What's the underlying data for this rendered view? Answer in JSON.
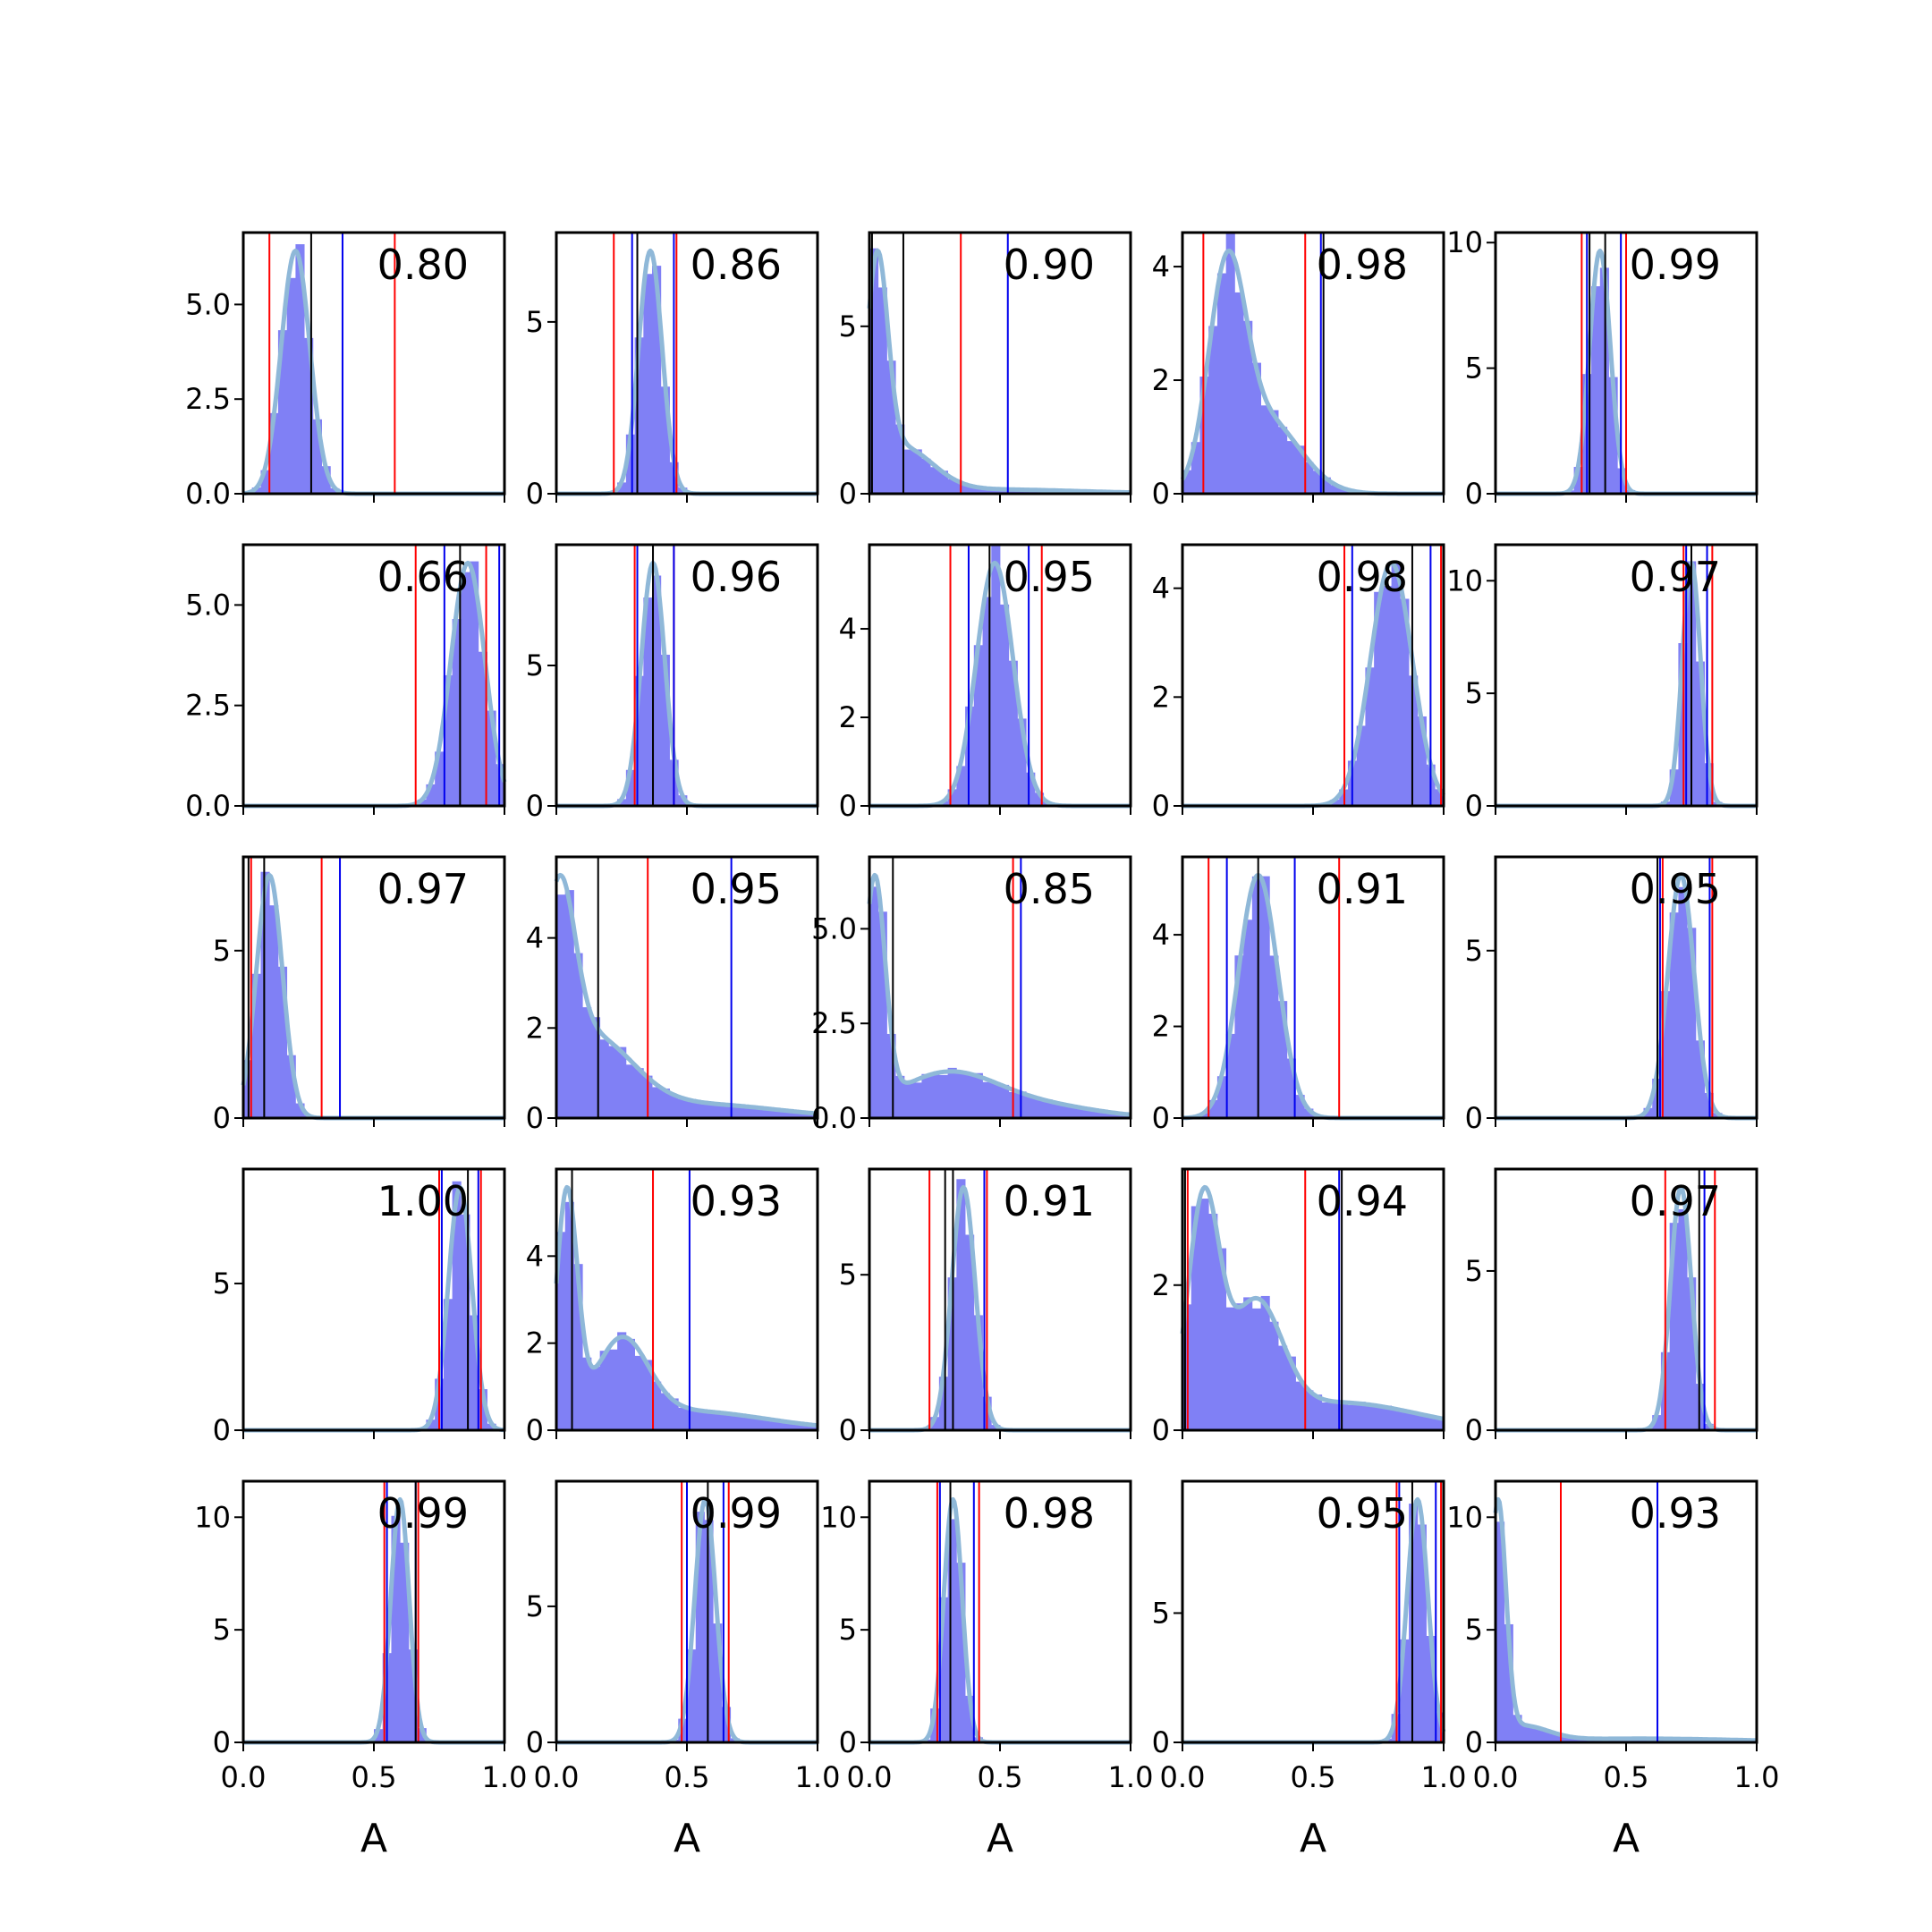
{
  "chart_data": {
    "type": "histogram-grid",
    "rows": 5,
    "cols": 5,
    "xlabel": "A",
    "xlim": [
      0.0,
      1.0
    ],
    "xticks": [
      "0.0",
      "0.5",
      "1.0"
    ],
    "colors": {
      "hist": "#8080f5",
      "kde": "#8fb8d8",
      "red_line": "#ff0000",
      "blue_line": "#0000ee",
      "black_line": "#000000"
    },
    "panels": [
      {
        "label": "0.80",
        "ymax": 6.9,
        "yticks": [
          "0.0",
          "2.5",
          "5.0"
        ],
        "peaks": [
          {
            "mu": 0.2,
            "s": 0.055,
            "w": 1.0
          }
        ],
        "red": [
          0.1,
          0.58
        ],
        "blue": [
          0.38
        ],
        "black": [
          0.26
        ]
      },
      {
        "label": "0.86",
        "ymax": 7.6,
        "yticks": [
          "0",
          "5"
        ],
        "peaks": [
          {
            "mu": 0.36,
            "s": 0.045,
            "w": 1.0
          }
        ],
        "red": [
          0.22,
          0.46
        ],
        "blue": [
          0.29,
          0.45
        ],
        "black": [
          0.31
        ]
      },
      {
        "label": "0.90",
        "ymax": 7.8,
        "yticks": [
          "0",
          "5"
        ],
        "peaks": [
          {
            "mu": 0.03,
            "s": 0.04,
            "w": 0.55
          },
          {
            "mu": 0.12,
            "s": 0.12,
            "w": 0.35
          },
          {
            "mu": 0.45,
            "s": 0.35,
            "w": 0.1
          }
        ],
        "red": [
          0.35
        ],
        "blue": [
          0.53
        ],
        "black": [
          0.01,
          0.13
        ]
      },
      {
        "label": "0.98",
        "ymax": 4.6,
        "yticks": [
          "0",
          "2",
          "4"
        ],
        "peaks": [
          {
            "mu": 0.17,
            "s": 0.07,
            "w": 0.6
          },
          {
            "mu": 0.32,
            "s": 0.13,
            "w": 0.4
          }
        ],
        "red": [
          0.08,
          0.47
        ],
        "blue": [
          0.53
        ],
        "black": [
          0.54
        ]
      },
      {
        "label": "0.99",
        "ymax": 10.4,
        "yticks": [
          "0",
          "5",
          "10"
        ],
        "peaks": [
          {
            "mu": 0.4,
            "s": 0.04,
            "w": 1.0
          }
        ],
        "red": [
          0.33,
          0.5
        ],
        "blue": [
          0.35,
          0.48
        ],
        "black": [
          0.36,
          0.42
        ]
      },
      {
        "label": "0.66",
        "ymax": 6.5,
        "yticks": [
          "0.0",
          "2.5",
          "5.0"
        ],
        "peaks": [
          {
            "mu": 0.86,
            "s": 0.065,
            "w": 1.0
          }
        ],
        "red": [
          0.66,
          0.93
        ],
        "blue": [
          0.77,
          0.98
        ],
        "black": [
          0.83
        ]
      },
      {
        "label": "0.96",
        "ymax": 9.3,
        "yticks": [
          "0",
          "5"
        ],
        "peaks": [
          {
            "mu": 0.37,
            "s": 0.045,
            "w": 1.0
          }
        ],
        "red": [
          0.3,
          0.45
        ],
        "blue": [
          0.31,
          0.45
        ],
        "black": [
          0.37
        ]
      },
      {
        "label": "0.95",
        "ymax": 5.9,
        "yticks": [
          "0",
          "2",
          "4"
        ],
        "peaks": [
          {
            "mu": 0.48,
            "s": 0.07,
            "w": 1.0
          }
        ],
        "red": [
          0.31,
          0.66
        ],
        "blue": [
          0.38,
          0.61
        ],
        "black": [
          0.46
        ]
      },
      {
        "label": "0.98",
        "ymax": 4.8,
        "yticks": [
          "0",
          "2",
          "4"
        ],
        "peaks": [
          {
            "mu": 0.8,
            "s": 0.08,
            "w": 1.0
          }
        ],
        "red": [
          0.62,
          0.99
        ],
        "blue": [
          0.65,
          0.95
        ],
        "black": [
          0.88
        ]
      },
      {
        "label": "0.97",
        "ymax": 11.6,
        "yticks": [
          "0",
          "5",
          "10"
        ],
        "peaks": [
          {
            "mu": 0.75,
            "s": 0.035,
            "w": 1.0
          }
        ],
        "red": [
          0.72,
          0.83
        ],
        "blue": [
          0.73,
          0.81
        ],
        "black": [
          0.75
        ]
      },
      {
        "label": "0.97",
        "ymax": 7.8,
        "yticks": [
          "0",
          "5"
        ],
        "peaks": [
          {
            "mu": 0.1,
            "s": 0.05,
            "w": 1.0
          }
        ],
        "red": [
          0.03,
          0.3
        ],
        "blue": [
          0.37
        ],
        "black": [
          0.02,
          0.08
        ]
      },
      {
        "label": "0.95",
        "ymax": 5.8,
        "yticks": [
          "0",
          "2",
          "4"
        ],
        "peaks": [
          {
            "mu": 0.01,
            "s": 0.06,
            "w": 0.4
          },
          {
            "mu": 0.13,
            "s": 0.16,
            "w": 0.45
          },
          {
            "mu": 0.55,
            "s": 0.3,
            "w": 0.15
          }
        ],
        "red": [
          0.35
        ],
        "blue": [
          0.67
        ],
        "black": [
          0.16
        ]
      },
      {
        "label": "0.85",
        "ymax": 6.9,
        "yticks": [
          "0.0",
          "2.5",
          "5.0"
        ],
        "peaks": [
          {
            "mu": 0.02,
            "s": 0.04,
            "w": 0.45
          },
          {
            "mu": 0.3,
            "s": 0.2,
            "w": 0.45
          },
          {
            "mu": 0.7,
            "s": 0.2,
            "w": 0.1
          }
        ],
        "red": [
          0.55
        ],
        "blue": [
          0.58
        ],
        "black": [
          0.09
        ]
      },
      {
        "label": "0.91",
        "ymax": 5.7,
        "yticks": [
          "0",
          "2",
          "4"
        ],
        "peaks": [
          {
            "mu": 0.29,
            "s": 0.075,
            "w": 1.0
          }
        ],
        "red": [
          0.1,
          0.6
        ],
        "blue": [
          0.17,
          0.43
        ],
        "black": [
          0.29
        ]
      },
      {
        "label": "0.95",
        "ymax": 7.8,
        "yticks": [
          "0",
          "5"
        ],
        "peaks": [
          {
            "mu": 0.71,
            "s": 0.05,
            "w": 1.0
          }
        ],
        "red": [
          0.64,
          0.83
        ],
        "blue": [
          0.63,
          0.82
        ],
        "black": [
          0.62
        ]
      },
      {
        "label": "1.00",
        "ymax": 8.9,
        "yticks": [
          "0",
          "5"
        ],
        "peaks": [
          {
            "mu": 0.83,
            "s": 0.045,
            "w": 1.0
          }
        ],
        "red": [
          0.75,
          0.91
        ],
        "blue": [
          0.76,
          0.9
        ],
        "black": [
          0.86
        ]
      },
      {
        "label": "0.93",
        "ymax": 6.0,
        "yticks": [
          "0",
          "2",
          "4"
        ],
        "peaks": [
          {
            "mu": 0.04,
            "s": 0.04,
            "w": 0.4
          },
          {
            "mu": 0.25,
            "s": 0.1,
            "w": 0.35
          },
          {
            "mu": 0.5,
            "s": 0.3,
            "w": 0.25
          }
        ],
        "red": [
          0.37
        ],
        "blue": [
          0.51
        ],
        "black": [
          0.06
        ]
      },
      {
        "label": "0.91",
        "ymax": 8.4,
        "yticks": [
          "0",
          "5"
        ],
        "peaks": [
          {
            "mu": 0.36,
            "s": 0.045,
            "w": 1.0
          }
        ],
        "red": [
          0.23,
          0.45
        ],
        "blue": [
          0.44
        ],
        "black": [
          0.29,
          0.32
        ]
      },
      {
        "label": "0.94",
        "ymax": 3.6,
        "yticks": [
          "0",
          "2"
        ],
        "peaks": [
          {
            "mu": 0.08,
            "s": 0.06,
            "w": 0.4
          },
          {
            "mu": 0.28,
            "s": 0.1,
            "w": 0.35
          },
          {
            "mu": 0.6,
            "s": 0.3,
            "w": 0.25
          }
        ],
        "red": [
          0.47,
          0.02
        ],
        "blue": [
          0.6
        ],
        "black": [
          0.01,
          0.61
        ]
      },
      {
        "label": "0.97",
        "ymax": 8.2,
        "yticks": [
          "0",
          "5"
        ],
        "peaks": [
          {
            "mu": 0.71,
            "s": 0.04,
            "w": 1.0
          }
        ],
        "red": [
          0.65,
          0.84
        ],
        "blue": [
          0.8
        ],
        "black": [
          0.78
        ]
      },
      {
        "label": "0.99",
        "ymax": 11.6,
        "yticks": [
          "0",
          "5",
          "10"
        ],
        "peaks": [
          {
            "mu": 0.6,
            "s": 0.035,
            "w": 1.0
          }
        ],
        "red": [
          0.54,
          0.67
        ],
        "blue": [
          0.55,
          0.66
        ],
        "black": [
          0.66
        ]
      },
      {
        "label": "0.99",
        "ymax": 9.6,
        "yticks": [
          "0",
          "5"
        ],
        "peaks": [
          {
            "mu": 0.57,
            "s": 0.04,
            "w": 1.0
          }
        ],
        "red": [
          0.48,
          0.66
        ],
        "blue": [
          0.5,
          0.64
        ],
        "black": [
          0.58
        ]
      },
      {
        "label": "0.98",
        "ymax": 11.6,
        "yticks": [
          "0",
          "5",
          "10"
        ],
        "peaks": [
          {
            "mu": 0.32,
            "s": 0.035,
            "w": 1.0
          }
        ],
        "red": [
          0.26,
          0.42
        ],
        "blue": [
          0.27,
          0.4
        ],
        "black": [
          0.31
        ]
      },
      {
        "label": "0.95",
        "ymax": 10.1,
        "yticks": [
          "0",
          "5"
        ],
        "peaks": [
          {
            "mu": 0.9,
            "s": 0.04,
            "w": 1.0
          }
        ],
        "red": [
          0.82,
          0.99
        ],
        "blue": [
          0.83,
          0.97
        ],
        "black": [
          0.88
        ]
      },
      {
        "label": "0.93",
        "ymax": 11.6,
        "yticks": [
          "0",
          "5",
          "10"
        ],
        "peaks": [
          {
            "mu": 0.01,
            "s": 0.03,
            "w": 0.7
          },
          {
            "mu": 0.1,
            "s": 0.1,
            "w": 0.15
          },
          {
            "mu": 0.55,
            "s": 0.4,
            "w": 0.15
          }
        ],
        "red": [
          0.25
        ],
        "blue": [
          0.62
        ],
        "black": []
      }
    ]
  }
}
